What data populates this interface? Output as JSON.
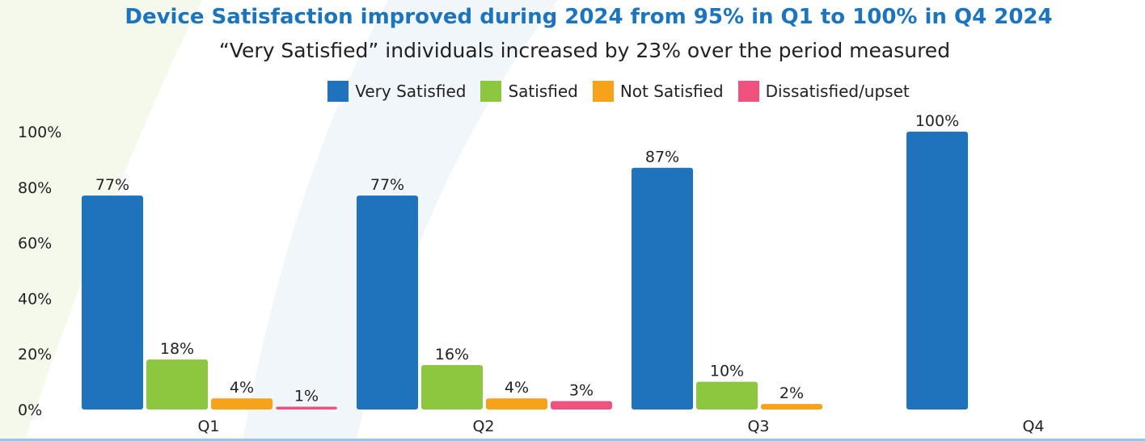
{
  "chart_data": {
    "type": "bar",
    "title": "Device Satisfaction improved during 2024 from 95% in Q1 to 100% in Q4 2024",
    "subtitle": "“Very Satisfied” individuals increased by 23% over the period measured",
    "categories": [
      "Q1",
      "Q2",
      "Q3",
      "Q4"
    ],
    "series": [
      {
        "name": "Very Satisfied",
        "color": "#1f73bd",
        "values": [
          77,
          77,
          87,
          100
        ]
      },
      {
        "name": "Satisfied",
        "color": "#8dc63f",
        "values": [
          18,
          16,
          10,
          null
        ]
      },
      {
        "name": "Not Satisfied",
        "color": "#f7a21b",
        "values": [
          4,
          4,
          2,
          null
        ]
      },
      {
        "name": "Dissatisfied/upset",
        "color": "#f0527f",
        "values": [
          1,
          3,
          null,
          null
        ]
      }
    ],
    "yticks": [
      "0%",
      "20%",
      "40%",
      "60%",
      "80%",
      "100%"
    ],
    "ylim": [
      0,
      100
    ],
    "grid": false,
    "legend_position": "top-center"
  }
}
